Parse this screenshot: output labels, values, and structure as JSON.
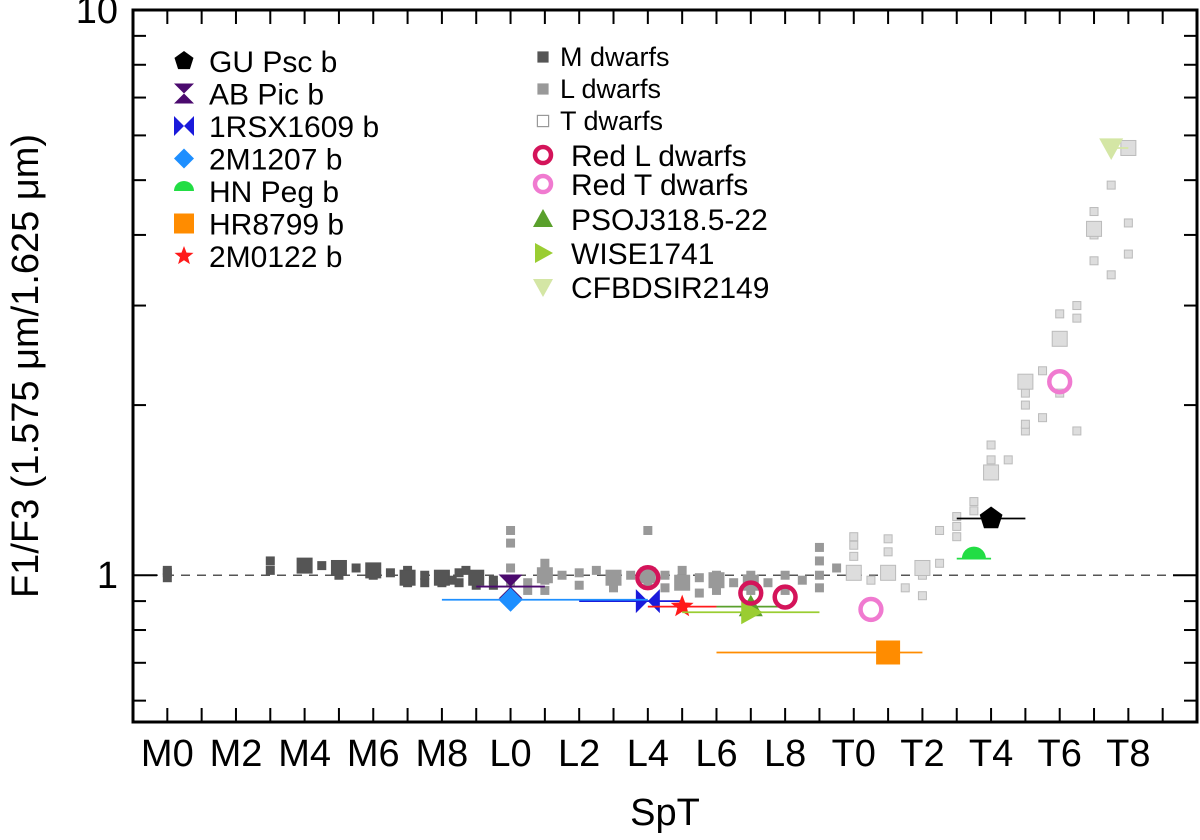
{
  "chart_data": {
    "type": "scatter",
    "title": "",
    "xlabel": "SpT",
    "ylabel": "F1/F3 (1.575 μm/1.625 μm)",
    "y_scale": "log",
    "ylim": [
      0.55,
      10
    ],
    "xlim": [
      -1,
      30
    ],
    "x_tick_labels": [
      "M0",
      "M2",
      "M4",
      "M6",
      "M8",
      "L0",
      "L2",
      "L4",
      "L6",
      "L8",
      "T0",
      "T2",
      "T4",
      "T6",
      "T8"
    ],
    "x_tick_values": [
      0,
      2,
      4,
      6,
      8,
      10,
      12,
      14,
      16,
      18,
      20,
      22,
      24,
      26,
      28
    ],
    "y_tick_labels": [
      "1",
      "10"
    ],
    "y_tick_values": [
      1,
      10
    ],
    "reference_line": {
      "y": 1,
      "style": "dashed"
    },
    "colors": {
      "m_dwarfs": "#555555",
      "l_dwarfs": "#999999",
      "t_dwarfs": "#dddddd",
      "red_l": "#d4145a",
      "red_t": "#f07ad0",
      "gu_psc": "#000000",
      "ab_pic": "#4b0a6e",
      "rsx1609": "#1a1adb",
      "m1207": "#1e8fff",
      "hn_peg": "#22dd44",
      "hr8799": "#ff8c00",
      "m0122": "#ff1a1a",
      "pso": "#5aa02c",
      "wise": "#9acd32",
      "cfbdsir": "#d4e6a5"
    },
    "legend_left": [
      {
        "label": "GU Psc b",
        "marker": "pentagon",
        "color_key": "gu_psc"
      },
      {
        "label": "AB Pic b",
        "marker": "hourglass",
        "color_key": "ab_pic"
      },
      {
        "label": "1RSX1609 b",
        "marker": "bowtie",
        "color_key": "rsx1609"
      },
      {
        "label": "2M1207 b",
        "marker": "diamond",
        "color_key": "m1207"
      },
      {
        "label": "HN Peg b",
        "marker": "half-circle",
        "color_key": "hn_peg"
      },
      {
        "label": "HR8799 b",
        "marker": "square",
        "color_key": "hr8799"
      },
      {
        "label": "2M0122 b",
        "marker": "star",
        "color_key": "m0122"
      }
    ],
    "legend_right": [
      {
        "label": "M dwarfs",
        "marker": "square-filled",
        "color_key": "m_dwarfs",
        "small": true
      },
      {
        "label": "L dwarfs",
        "marker": "square-filled",
        "color_key": "l_dwarfs",
        "small": true
      },
      {
        "label": "T dwarfs",
        "marker": "square-open",
        "color_key": "t_dwarfs",
        "small": true
      },
      {
        "label": "Red L dwarfs",
        "marker": "ring",
        "color_key": "red_l"
      },
      {
        "label": "Red T dwarfs",
        "marker": "ring",
        "color_key": "red_t"
      },
      {
        "label": "PSOJ318.5-22",
        "marker": "triangle-up",
        "color_key": "pso"
      },
      {
        "label": "WISE1741",
        "marker": "triangle-right",
        "color_key": "wise"
      },
      {
        "label": "CFBDSIR2149",
        "marker": "triangle-down",
        "color_key": "cfbdsir"
      }
    ],
    "field_dwarfs": {
      "M": [
        [
          0,
          1.02
        ],
        [
          0,
          0.99
        ],
        [
          0,
          1.01
        ],
        [
          3,
          1.06
        ],
        [
          3,
          1.02
        ],
        [
          4,
          1.03
        ],
        [
          4.5,
          1.04
        ],
        [
          5,
          1.02
        ],
        [
          5,
          1.0
        ],
        [
          5.5,
          1.03
        ],
        [
          6,
          1.03
        ],
        [
          6,
          1.0
        ],
        [
          6.5,
          1.01
        ],
        [
          7,
          0.99
        ],
        [
          7,
          1.02
        ],
        [
          7,
          0.97
        ],
        [
          7.5,
          1.0
        ],
        [
          7.5,
          0.97
        ],
        [
          8,
          0.99
        ],
        [
          8,
          0.97
        ],
        [
          8,
          1.0
        ],
        [
          8.5,
          0.97
        ],
        [
          8.5,
          1.01
        ],
        [
          9,
          0.98
        ],
        [
          9,
          1.0
        ],
        [
          9,
          0.96
        ],
        [
          9.5,
          0.98
        ],
        [
          9.5,
          0.96
        ],
        [
          8.3,
          0.98
        ],
        [
          8.7,
          1.02
        ]
      ],
      "M_binned": [
        [
          4,
          1.04
        ],
        [
          5,
          1.03
        ],
        [
          6,
          1.02
        ],
        [
          7,
          0.99
        ],
        [
          8,
          0.99
        ],
        [
          9,
          0.99
        ]
      ],
      "L": [
        [
          10,
          0.97
        ],
        [
          10,
          1.03
        ],
        [
          10,
          0.92
        ],
        [
          10,
          1.2
        ],
        [
          10,
          1.14
        ],
        [
          10.5,
          0.97
        ],
        [
          10.5,
          0.94
        ],
        [
          11,
          1.05
        ],
        [
          11,
          0.98
        ],
        [
          11,
          0.94
        ],
        [
          11.5,
          1.0
        ],
        [
          12,
          1.01
        ],
        [
          12,
          0.96
        ],
        [
          12.5,
          1.02
        ],
        [
          13,
          0.98
        ],
        [
          13,
          0.95
        ],
        [
          13.5,
          1.0
        ],
        [
          14,
          1.02
        ],
        [
          14,
          0.96
        ],
        [
          14,
          1.2
        ],
        [
          14.5,
          1.0
        ],
        [
          14.5,
          0.95
        ],
        [
          15,
          0.97
        ],
        [
          15,
          1.02
        ],
        [
          15.5,
          0.99
        ],
        [
          15.5,
          0.93
        ],
        [
          16,
          1.0
        ],
        [
          16,
          0.94
        ],
        [
          16.5,
          0.97
        ],
        [
          17,
          1.0
        ],
        [
          17,
          0.94
        ],
        [
          17.5,
          0.97
        ],
        [
          18,
          1.0
        ],
        [
          18,
          0.94
        ],
        [
          18.5,
          0.98
        ],
        [
          19,
          1.0
        ],
        [
          19,
          1.06
        ],
        [
          19,
          0.95
        ],
        [
          19,
          1.12
        ],
        [
          19.5,
          1.03
        ]
      ],
      "L_binned": [
        [
          11,
          1.0
        ],
        [
          13,
          0.99
        ],
        [
          14,
          1.0
        ],
        [
          15,
          0.97
        ],
        [
          16,
          0.98
        ],
        [
          17,
          0.97
        ]
      ],
      "T": [
        [
          20,
          1.08
        ],
        [
          20,
          1.13
        ],
        [
          20,
          1.17
        ],
        [
          20.5,
          0.98
        ],
        [
          21,
          1.02
        ],
        [
          21,
          1.1
        ],
        [
          21,
          1.16
        ],
        [
          21.5,
          0.95
        ],
        [
          22,
          1.0
        ],
        [
          22,
          0.92
        ],
        [
          22.5,
          1.05
        ],
        [
          22.5,
          1.2
        ],
        [
          23,
          1.22
        ],
        [
          23,
          1.27
        ],
        [
          23,
          1.17
        ],
        [
          23.5,
          1.3
        ],
        [
          23.5,
          1.35
        ],
        [
          24,
          1.5
        ],
        [
          24,
          1.6
        ],
        [
          24,
          1.7
        ],
        [
          24.5,
          1.6
        ],
        [
          25,
          1.8
        ],
        [
          25,
          2.0
        ],
        [
          25,
          2.1
        ],
        [
          25,
          1.85
        ],
        [
          25.5,
          1.9
        ],
        [
          25.5,
          2.3
        ],
        [
          26,
          2.6
        ],
        [
          26,
          2.9
        ],
        [
          26,
          2.1
        ],
        [
          26.5,
          2.85
        ],
        [
          26.5,
          3.0
        ],
        [
          26.5,
          1.8
        ],
        [
          27,
          3.6
        ],
        [
          27,
          4.0
        ],
        [
          27,
          4.4
        ],
        [
          27.5,
          4.9
        ],
        [
          27.5,
          3.4
        ],
        [
          28,
          4.2
        ],
        [
          28,
          3.7
        ]
      ],
      "T_binned": [
        [
          20,
          1.01
        ],
        [
          21,
          1.01
        ],
        [
          22,
          1.03
        ],
        [
          24,
          1.52
        ],
        [
          25,
          2.2
        ],
        [
          26,
          2.62
        ],
        [
          27,
          4.1
        ],
        [
          28,
          5.7
        ]
      ]
    },
    "objects": [
      {
        "name": "GU Psc b",
        "color_key": "gu_psc",
        "marker": "pentagon",
        "x": 24,
        "y": 1.26,
        "xerr": [
          23,
          25
        ]
      },
      {
        "name": "AB Pic b",
        "color_key": "ab_pic",
        "marker": "hourglass",
        "x": 10,
        "y": 0.955,
        "xerr": [
          9,
          11
        ]
      },
      {
        "name": "1RSX1609 b",
        "color_key": "rsx1609",
        "marker": "bowtie",
        "x": 14,
        "y": 0.9,
        "xerr": [
          12,
          15
        ]
      },
      {
        "name": "2M1207 b",
        "color_key": "m1207",
        "marker": "diamond",
        "x": 10,
        "y": 0.905,
        "xerr": [
          8,
          14
        ]
      },
      {
        "name": "HN Peg b",
        "color_key": "hn_peg",
        "marker": "half-circle",
        "x": 23.5,
        "y": 1.07,
        "xerr": [
          23,
          24
        ]
      },
      {
        "name": "HR8799 b",
        "color_key": "hr8799",
        "marker": "square",
        "x": 21,
        "y": 0.73,
        "xerr": [
          16,
          22
        ]
      },
      {
        "name": "2M0122 b",
        "color_key": "m0122",
        "marker": "star",
        "x": 15,
        "y": 0.88,
        "xerr": [
          14,
          16
        ]
      },
      {
        "name": "PSOJ318.5-22",
        "color_key": "pso",
        "marker": "triangle-up",
        "x": 17,
        "y": 0.88,
        "xerr": [
          16,
          18
        ]
      },
      {
        "name": "WISE1741",
        "color_key": "wise",
        "marker": "triangle-right",
        "x": 17,
        "y": 0.86,
        "xerr": [
          15,
          19
        ]
      },
      {
        "name": "CFBDSIR2149",
        "color_key": "cfbdsir",
        "marker": "triangle-down",
        "x": 27.5,
        "y": 5.7,
        "xerr": [
          27.5,
          28
        ]
      },
      {
        "name": "Red L dwarf",
        "color_key": "red_l",
        "marker": "ring",
        "x": 14,
        "y": 0.99
      },
      {
        "name": "Red L dwarf",
        "color_key": "red_l",
        "marker": "ring",
        "x": 17,
        "y": 0.93
      },
      {
        "name": "Red L dwarf",
        "color_key": "red_l",
        "marker": "ring",
        "x": 18,
        "y": 0.915
      },
      {
        "name": "Red T dwarf",
        "color_key": "red_t",
        "marker": "ring",
        "x": 20.5,
        "y": 0.87
      },
      {
        "name": "Red T dwarf",
        "color_key": "red_t",
        "marker": "ring",
        "x": 26,
        "y": 2.2
      }
    ]
  }
}
